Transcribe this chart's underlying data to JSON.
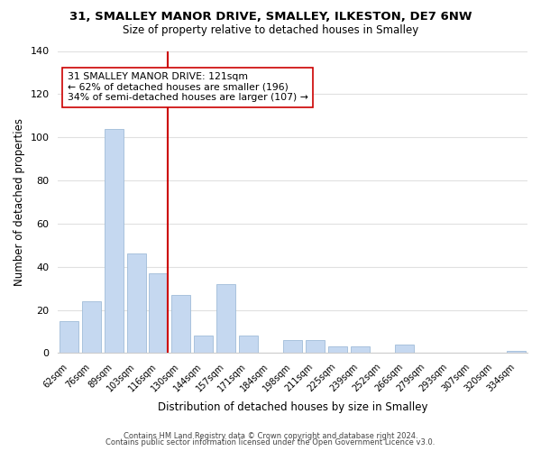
{
  "title": "31, SMALLEY MANOR DRIVE, SMALLEY, ILKESTON, DE7 6NW",
  "subtitle": "Size of property relative to detached houses in Smalley",
  "xlabel": "Distribution of detached houses by size in Smalley",
  "ylabel": "Number of detached properties",
  "bar_labels": [
    "62sqm",
    "76sqm",
    "89sqm",
    "103sqm",
    "116sqm",
    "130sqm",
    "144sqm",
    "157sqm",
    "171sqm",
    "184sqm",
    "198sqm",
    "211sqm",
    "225sqm",
    "239sqm",
    "252sqm",
    "266sqm",
    "279sqm",
    "293sqm",
    "307sqm",
    "320sqm",
    "334sqm"
  ],
  "bar_values": [
    15,
    24,
    104,
    46,
    37,
    27,
    8,
    32,
    8,
    0,
    6,
    6,
    3,
    3,
    0,
    4,
    0,
    0,
    0,
    0,
    1
  ],
  "bar_color": "#c5d8f0",
  "bar_edge_color": "#a0bcd8",
  "highlight_line_color": "#cc0000",
  "annotation_text": "31 SMALLEY MANOR DRIVE: 121sqm\n← 62% of detached houses are smaller (196)\n34% of semi-detached houses are larger (107) →",
  "annotation_box_color": "#ffffff",
  "annotation_box_edgecolor": "#cc0000",
  "ylim": [
    0,
    140
  ],
  "yticks": [
    0,
    20,
    40,
    60,
    80,
    100,
    120,
    140
  ],
  "footer_line1": "Contains HM Land Registry data © Crown copyright and database right 2024.",
  "footer_line2": "Contains public sector information licensed under the Open Government Licence v3.0.",
  "background_color": "#ffffff",
  "grid_color": "#e0e0e0"
}
